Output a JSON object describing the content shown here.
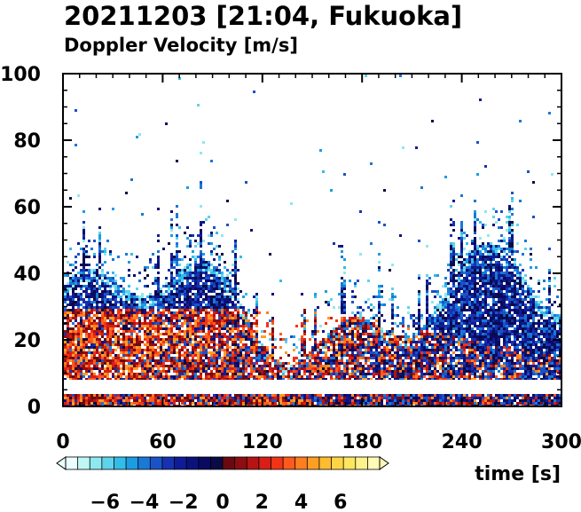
{
  "chart_data": {
    "type": "heatmap",
    "title": "20211203 [21:04, Fukuoka]",
    "subtitle": "Doppler Velocity [m/s]",
    "xlabel": "time [s]",
    "ylabel": "",
    "xlim": [
      0,
      300
    ],
    "ylim": [
      0,
      100
    ],
    "xticks": [
      "0",
      "60",
      "120",
      "180",
      "240",
      "300"
    ],
    "yticks": [
      "0",
      "20",
      "40",
      "60",
      "80",
      "100"
    ],
    "colorbar": {
      "range": [
        -8,
        8
      ],
      "ticks": [
        "-6",
        "-4",
        "-2",
        "0",
        "2",
        "4",
        "6"
      ],
      "colors": [
        "#eaffff",
        "#bff6f6",
        "#8ee8ef",
        "#5fd3ec",
        "#34bce9",
        "#1c9ce2",
        "#1a78d6",
        "#1a52c8",
        "#1632b0",
        "#101c96",
        "#0c127c",
        "#0a0a60",
        "#0a0a46",
        "#6a0a10",
        "#8c0d12",
        "#b41414",
        "#d81e16",
        "#f03418",
        "#ff5a1c",
        "#ff7e20",
        "#ff9e24",
        "#ffbc30",
        "#ffd444",
        "#ffe660",
        "#fff28a",
        "#fffab6"
      ]
    },
    "data_gap_height_range": [
      4,
      8
    ],
    "regions": [
      {
        "name": "lower-layer",
        "height_range": [
          8,
          30
        ],
        "velocity": "mostly positive (red)"
      },
      {
        "name": "upper-layer",
        "height_range": [
          30,
          55
        ],
        "velocity": "mostly negative (blue)"
      }
    ]
  }
}
